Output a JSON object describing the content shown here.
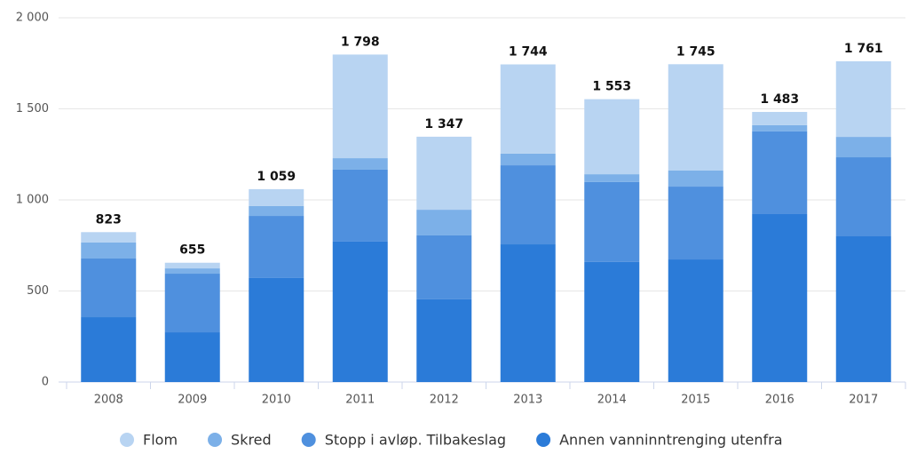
{
  "chart_data": {
    "type": "stacked_bar",
    "categories": [
      "2008",
      "2009",
      "2010",
      "2011",
      "2012",
      "2013",
      "2014",
      "2015",
      "2016",
      "2017"
    ],
    "series": [
      {
        "name": "Annen vanninntrenging utenfra",
        "color": "#2b7bd8",
        "values": [
          356,
          273,
          571,
          771,
          454,
          756,
          659,
          673,
          922,
          800
        ]
      },
      {
        "name": "Stopp i avløp. Tilbakeslag",
        "color": "#4f90de",
        "values": [
          322,
          322,
          341,
          395,
          351,
          434,
          439,
          400,
          454,
          434
        ]
      },
      {
        "name": "Skred",
        "color": "#7cb0e8",
        "values": [
          88,
          29,
          54,
          63,
          141,
          64,
          43,
          88,
          34,
          112
        ]
      },
      {
        "name": "Flom",
        "color": "#b8d4f2",
        "values": [
          57,
          31,
          93,
          569,
          401,
          490,
          412,
          584,
          73,
          415
        ]
      }
    ],
    "totals": [
      823,
      655,
      1059,
      1798,
      1347,
      1744,
      1553,
      1745,
      1483,
      1761
    ],
    "total_labels": [
      "823",
      "655",
      "1 059",
      "1 798",
      "1 347",
      "1 744",
      "1 553",
      "1 745",
      "1 483",
      "1 761"
    ],
    "ylim": [
      0,
      2000
    ],
    "yticks": [
      0,
      500,
      {
        "value": 1000,
        "label": "1 000"
      },
      {
        "value": 1500,
        "label": "1 500"
      },
      {
        "value": 2000,
        "label": "2 000"
      }
    ],
    "grid": true,
    "legend": "bottom"
  }
}
